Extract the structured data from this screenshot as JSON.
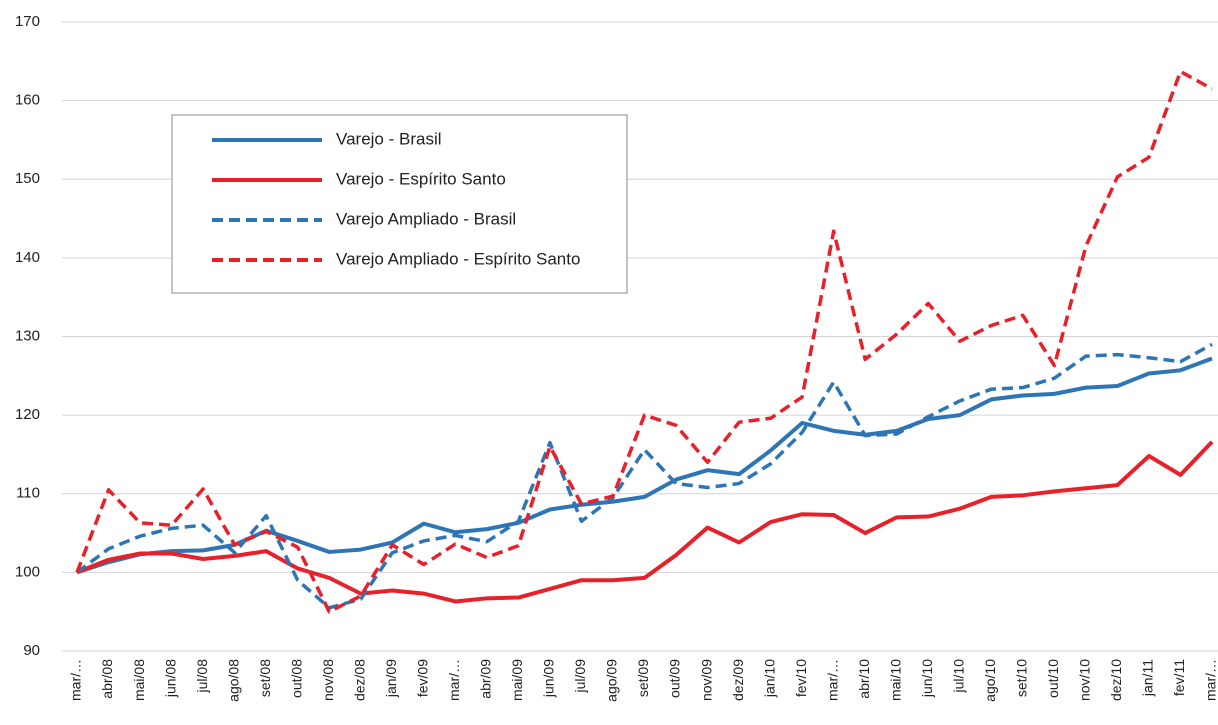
{
  "chart_data": {
    "type": "line",
    "categories": [
      "mar/…",
      "abr/08",
      "mai/08",
      "jun/08",
      "jul/08",
      "ago/08",
      "set/08",
      "out/08",
      "nov/08",
      "dez/08",
      "jan/09",
      "fev/09",
      "mar/…",
      "abr/09",
      "mai/09",
      "jun/09",
      "jul/09",
      "ago/09",
      "set/09",
      "out/09",
      "nov/09",
      "dez/09",
      "jan/10",
      "fev/10",
      "mar/…",
      "abr/10",
      "mai/10",
      "jun/10",
      "jul/10",
      "ago/10",
      "set/10",
      "out/10",
      "nov/10",
      "dez/10",
      "jan/11",
      "fev/11",
      "mar/…"
    ],
    "series": [
      {
        "name": "Varejo - Brasil",
        "color": "#2e75b6",
        "dashed": false,
        "values": [
          100,
          101.3,
          102.3,
          102.7,
          102.8,
          103.5,
          105.3,
          104,
          102.6,
          102.9,
          103.8,
          106.2,
          105.1,
          105.5,
          106.3,
          108,
          108.6,
          109,
          109.6,
          111.8,
          113,
          112.5,
          115.5,
          119,
          118,
          117.5,
          118,
          119.5,
          120,
          122,
          122.5,
          122.7,
          123.5,
          123.7,
          125.3,
          125.7,
          127.2
        ]
      },
      {
        "name": "Varejo - Espírito Santo",
        "color": "#e8202a",
        "dashed": false,
        "values": [
          100,
          101.6,
          102.4,
          102.4,
          101.7,
          102.1,
          102.7,
          100.5,
          99.3,
          97.3,
          97.7,
          97.3,
          96.3,
          96.7,
          96.8,
          97.9,
          99,
          99,
          99.3,
          102.2,
          105.7,
          103.8,
          106.4,
          107.4,
          107.3,
          105,
          107,
          107.1,
          108.1,
          109.6,
          109.8,
          110.3,
          110.7,
          111.1,
          114.8,
          112.4,
          116.6
        ]
      },
      {
        "name": "Varejo Ampliado - Brasil",
        "color": "#2e75b6",
        "dashed": true,
        "values": [
          100,
          103,
          104.6,
          105.6,
          106,
          102.5,
          107.2,
          99,
          95.5,
          96.6,
          102.5,
          104,
          104.7,
          103.9,
          106.5,
          116.5,
          106.5,
          109.5,
          115.6,
          111.3,
          110.8,
          111.3,
          113.8,
          117.8,
          124.2,
          117.4,
          117.6,
          119.8,
          121.8,
          123.3,
          123.5,
          124.7,
          127.5,
          127.7,
          127.3,
          126.8,
          129
        ]
      },
      {
        "name": "Varejo Ampliado - Espírito Santo",
        "color": "#e8202a",
        "dashed": true,
        "values": [
          100,
          110.5,
          106.3,
          106,
          110.6,
          103.5,
          105.2,
          103.2,
          95,
          97,
          103.5,
          101,
          103.6,
          101.9,
          103.4,
          116,
          108.7,
          109.7,
          120,
          118.7,
          114,
          119.1,
          119.6,
          122.3,
          143.4,
          127.1,
          130.3,
          134.2,
          129.4,
          131.4,
          132.7,
          126.3,
          141.5,
          150.3,
          152.8,
          163.7,
          161.5
        ]
      }
    ],
    "ylim": [
      90,
      170
    ],
    "yticks": [
      90,
      100,
      110,
      120,
      130,
      140,
      150,
      160,
      170
    ],
    "grid": true
  }
}
